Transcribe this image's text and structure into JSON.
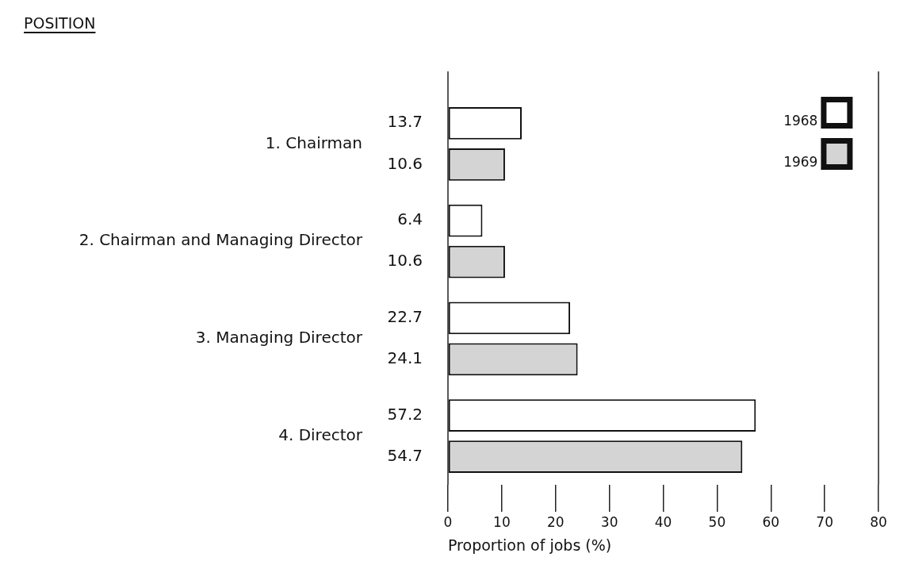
{
  "chart_data": {
    "type": "bar",
    "orientation": "horizontal",
    "annotations": [
      "POSITION"
    ],
    "xlabel": "Proportion of jobs (%)",
    "categories": [
      "1. Chairman",
      "2. Chairman and Managing Director",
      "3. Managing Director",
      "4. Director"
    ],
    "series": [
      {
        "name": "1968",
        "color": "#ffffff",
        "values": [
          13.7,
          6.4,
          22.7,
          57.2
        ]
      },
      {
        "name": "1969",
        "color": "#d4d4d4",
        "values": [
          10.6,
          10.6,
          24.1,
          54.7
        ]
      }
    ],
    "xlim": [
      0,
      80
    ],
    "xticks": [
      0,
      10,
      20,
      30,
      40,
      50,
      60,
      70,
      80
    ],
    "data_labels": true,
    "legend": "top right",
    "grid": false
  }
}
